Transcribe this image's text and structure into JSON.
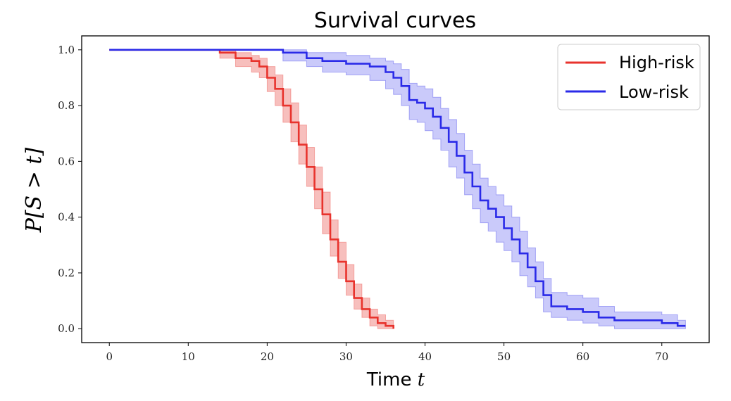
{
  "chart_data": {
    "type": "line",
    "title": "Survival curves",
    "xlabel_text": "Time ",
    "xlabel_var": "t",
    "ylabel": "P[S > t]",
    "xlim": [
      -3.5,
      76
    ],
    "ylim": [
      -0.05,
      1.05
    ],
    "x_ticks": [
      0,
      10,
      20,
      30,
      40,
      50,
      60,
      70
    ],
    "y_ticks": [
      0.0,
      0.2,
      0.4,
      0.6,
      0.8,
      1.0
    ],
    "y_tick_labels": [
      "0.0",
      "0.2",
      "0.4",
      "0.6",
      "0.8",
      "1.0"
    ],
    "legend": "top-right",
    "grid": false,
    "series": [
      {
        "name": "High-risk",
        "color": "#e8332d",
        "band_color": "#f08a86",
        "x": [
          0,
          14,
          16,
          18,
          19,
          20,
          21,
          22,
          23,
          24,
          25,
          26,
          27,
          28,
          29,
          30,
          31,
          32,
          33,
          34,
          35,
          36
        ],
        "y": [
          1.0,
          0.99,
          0.97,
          0.96,
          0.94,
          0.9,
          0.86,
          0.8,
          0.74,
          0.66,
          0.58,
          0.5,
          0.41,
          0.32,
          0.24,
          0.17,
          0.11,
          0.07,
          0.04,
          0.02,
          0.01,
          0.0
        ],
        "lower": [
          1.0,
          0.97,
          0.94,
          0.92,
          0.9,
          0.85,
          0.8,
          0.74,
          0.67,
          0.59,
          0.51,
          0.43,
          0.34,
          0.26,
          0.18,
          0.12,
          0.07,
          0.04,
          0.01,
          0.0,
          0.0,
          0.0
        ],
        "upper": [
          1.0,
          1.0,
          0.99,
          0.98,
          0.97,
          0.94,
          0.91,
          0.86,
          0.81,
          0.73,
          0.65,
          0.58,
          0.49,
          0.39,
          0.31,
          0.23,
          0.16,
          0.11,
          0.07,
          0.05,
          0.03,
          0.0
        ]
      },
      {
        "name": "Low-risk",
        "color": "#2a2ae8",
        "band_color": "#9f9ff5",
        "x": [
          0,
          22,
          25,
          27,
          30,
          33,
          35,
          36,
          37,
          38,
          39,
          40,
          41,
          42,
          43,
          44,
          45,
          46,
          47,
          48,
          49,
          50,
          51,
          52,
          53,
          54,
          55,
          56,
          58,
          60,
          62,
          64,
          66,
          68,
          70,
          72,
          73
        ],
        "y": [
          1.0,
          0.99,
          0.97,
          0.96,
          0.95,
          0.94,
          0.92,
          0.9,
          0.87,
          0.82,
          0.81,
          0.79,
          0.76,
          0.72,
          0.67,
          0.62,
          0.56,
          0.51,
          0.46,
          0.43,
          0.4,
          0.36,
          0.32,
          0.27,
          0.22,
          0.17,
          0.12,
          0.08,
          0.07,
          0.06,
          0.04,
          0.03,
          0.03,
          0.03,
          0.02,
          0.01,
          0.01
        ],
        "lower": [
          1.0,
          0.96,
          0.94,
          0.92,
          0.91,
          0.89,
          0.86,
          0.84,
          0.8,
          0.75,
          0.74,
          0.71,
          0.68,
          0.64,
          0.58,
          0.54,
          0.48,
          0.43,
          0.38,
          0.35,
          0.31,
          0.28,
          0.24,
          0.19,
          0.15,
          0.11,
          0.06,
          0.04,
          0.03,
          0.02,
          0.01,
          0.0,
          0.0,
          0.0,
          0.0,
          0.0,
          0.0
        ],
        "upper": [
          1.0,
          1.0,
          0.99,
          0.99,
          0.98,
          0.97,
          0.96,
          0.95,
          0.93,
          0.88,
          0.87,
          0.86,
          0.83,
          0.79,
          0.75,
          0.7,
          0.64,
          0.59,
          0.54,
          0.51,
          0.48,
          0.44,
          0.4,
          0.35,
          0.29,
          0.24,
          0.18,
          0.13,
          0.12,
          0.11,
          0.08,
          0.06,
          0.06,
          0.06,
          0.05,
          0.03,
          0.02
        ]
      }
    ]
  }
}
